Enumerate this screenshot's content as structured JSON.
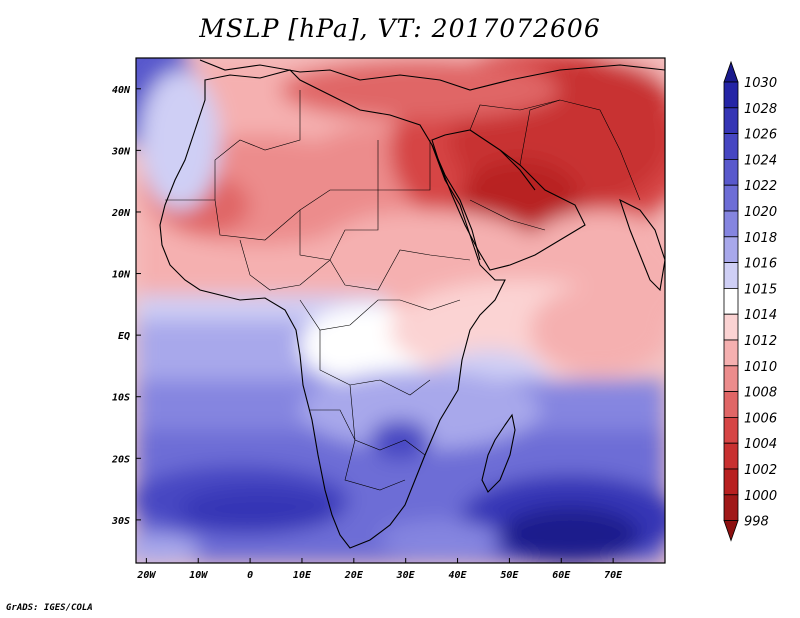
{
  "title": "MSLP [hPa], VT: 2017072606",
  "credit": "GrADS: IGES/COLA",
  "map": {
    "lon_range": [
      -22,
      80
    ],
    "lat_range": [
      -37,
      45
    ],
    "lon_ticks": [
      {
        "value": -20,
        "label": "20W"
      },
      {
        "value": -10,
        "label": "10W"
      },
      {
        "value": 0,
        "label": "0"
      },
      {
        "value": 10,
        "label": "10E"
      },
      {
        "value": 20,
        "label": "20E"
      },
      {
        "value": 30,
        "label": "30E"
      },
      {
        "value": 40,
        "label": "40E"
      },
      {
        "value": 50,
        "label": "50E"
      },
      {
        "value": 60,
        "label": "60E"
      },
      {
        "value": 70,
        "label": "70E"
      }
    ],
    "lat_ticks": [
      {
        "value": 40,
        "label": "40N"
      },
      {
        "value": 30,
        "label": "30N"
      },
      {
        "value": 20,
        "label": "20N"
      },
      {
        "value": 10,
        "label": "10N"
      },
      {
        "value": 0,
        "label": "EQ"
      },
      {
        "value": -10,
        "label": "10S"
      },
      {
        "value": -20,
        "label": "20S"
      },
      {
        "value": -30,
        "label": "30S"
      }
    ]
  },
  "colorbar": {
    "levels": [
      "1030",
      "1028",
      "1026",
      "1024",
      "1022",
      "1020",
      "1018",
      "1016",
      "1015",
      "1014",
      "1012",
      "1010",
      "1008",
      "1006",
      "1004",
      "1002",
      "1000",
      "998"
    ],
    "colors": [
      "#1a1a8c",
      "#2525a6",
      "#3535b5",
      "#4646c2",
      "#5959cc",
      "#6d6dd6",
      "#8585e0",
      "#a8a8eb",
      "#cfcff5",
      "#ffffff",
      "#fbd3d3",
      "#f5b0b0",
      "#ec8c8c",
      "#e06666",
      "#d64545",
      "#c83030",
      "#b82020",
      "#a01818",
      "#8c1010"
    ]
  }
}
